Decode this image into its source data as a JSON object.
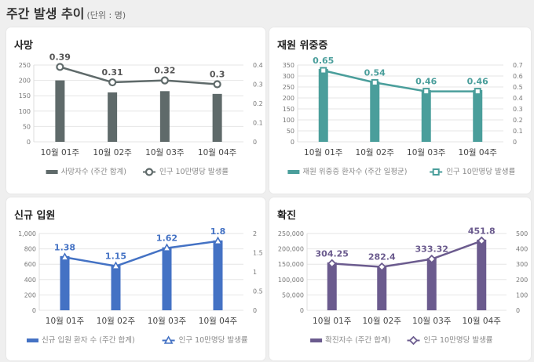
{
  "header": {
    "title": "주간 발생 추이",
    "unit": "(단위 : 명)"
  },
  "chart_data": [
    {
      "type": "bar+line",
      "title": "사망",
      "color": "#5f6a6a",
      "marker": "circle",
      "categories": [
        "10월 01주",
        "10월 02주",
        "10월 03주",
        "10월 04주"
      ],
      "bar_series": {
        "name": "사망자수 (주간 합계)",
        "values": [
          200,
          161,
          165,
          156
        ]
      },
      "line_series": {
        "name": "인구 10만명당 발생률",
        "values": [
          0.39,
          0.31,
          0.32,
          0.3
        ],
        "labels": [
          "0.39",
          "0.31",
          "0.32",
          "0.3"
        ]
      },
      "y_left": {
        "min": 0,
        "max": 250,
        "ticks": [
          "0",
          "50",
          "100",
          "150",
          "200",
          "250"
        ]
      },
      "y_right": {
        "min": 0,
        "max": 0.4,
        "ticks": [
          "0",
          "0.1",
          "0.2",
          "0.3",
          "0.4"
        ]
      },
      "grid": true,
      "legend": "bottom"
    },
    {
      "type": "bar+line",
      "title": "재원 위중증",
      "color": "#4a9e9b",
      "marker": "square",
      "categories": [
        "10월 01주",
        "10월 02주",
        "10월 03주",
        "10월 04주"
      ],
      "bar_series": {
        "name": "재원 위중증 환자수 (주간 일평균)",
        "values": [
          332,
          275,
          236,
          236
        ]
      },
      "line_series": {
        "name": "인구 10만명당 발생률",
        "values": [
          0.65,
          0.54,
          0.46,
          0.46
        ],
        "labels": [
          "0.65",
          "0.54",
          "0.46",
          "0.46"
        ]
      },
      "y_left": {
        "min": 0,
        "max": 350,
        "ticks": [
          "0",
          "50",
          "100",
          "150",
          "200",
          "250",
          "300",
          "350"
        ]
      },
      "y_right": {
        "min": 0,
        "max": 0.7,
        "ticks": [
          "0",
          "0.1",
          "0.2",
          "0.3",
          "0.4",
          "0.5",
          "0.6",
          "0.7"
        ]
      },
      "grid": true,
      "legend": "bottom"
    },
    {
      "type": "bar+line",
      "title": "신규 입원",
      "color": "#4472c4",
      "marker": "triangle",
      "categories": [
        "10월 01주",
        "10월 02주",
        "10월 03주",
        "10월 04주"
      ],
      "bar_series": {
        "name": "신규 입원 환자 수 (주간 합계)",
        "values": [
          706,
          580,
          820,
          910
        ]
      },
      "line_series": {
        "name": "인구 10만명당 발생률",
        "values": [
          1.38,
          1.15,
          1.62,
          1.8
        ],
        "labels": [
          "1.38",
          "1.15",
          "1.62",
          "1.8"
        ]
      },
      "y_left": {
        "min": 0,
        "max": 1000,
        "ticks": [
          "0",
          "200",
          "400",
          "600",
          "800",
          "1,000"
        ]
      },
      "y_right": {
        "min": 0,
        "max": 2,
        "ticks": [
          "0",
          "0.5",
          "1",
          "1.5",
          "2"
        ]
      },
      "grid": true,
      "legend": "bottom"
    },
    {
      "type": "bar+line",
      "title": "확진",
      "color": "#6b5b8e",
      "marker": "diamond",
      "categories": [
        "10월 01주",
        "10월 02주",
        "10월 03주",
        "10월 04주"
      ],
      "bar_series": {
        "name": "확진자수 (주간 합계)",
        "values": [
          156000,
          143000,
          170000,
          230000
        ]
      },
      "line_series": {
        "name": "인구 10만명당 발생률",
        "values": [
          304.25,
          282.4,
          333.32,
          451.8
        ],
        "labels": [
          "304.25",
          "282.4",
          "333.32",
          "451.8"
        ]
      },
      "y_left": {
        "min": 0,
        "max": 250000,
        "ticks": [
          "0",
          "50,000",
          "100,000",
          "150,000",
          "200,000",
          "250,000"
        ]
      },
      "y_right": {
        "min": 0,
        "max": 500,
        "ticks": [
          "0",
          "100",
          "200",
          "300",
          "400",
          "500"
        ]
      },
      "grid": true,
      "legend": "bottom"
    }
  ]
}
